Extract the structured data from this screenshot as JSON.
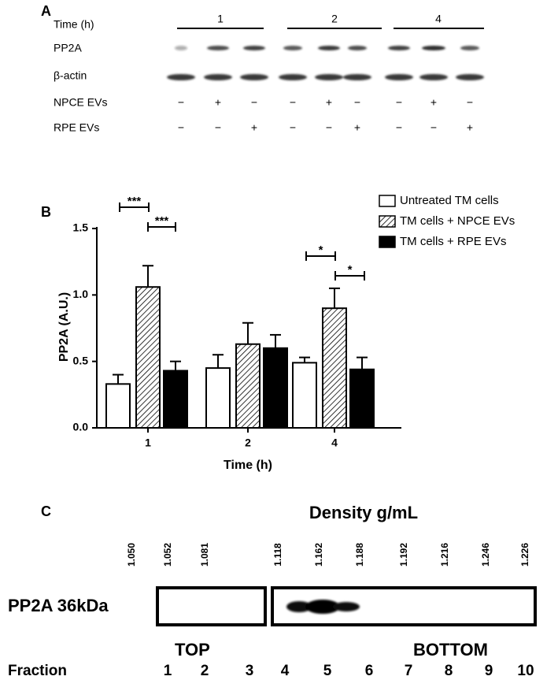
{
  "panel_a": {
    "label": "A",
    "time_label": "Time (h)",
    "times": [
      "1",
      "2",
      "4"
    ],
    "rows": [
      "PP2A",
      "β-actin",
      "NPCE EVs",
      "RPE EVs"
    ],
    "npce": [
      "−",
      "+",
      "−",
      "−",
      "+",
      "−",
      "−",
      "+",
      "−"
    ],
    "rpe": [
      "−",
      "−",
      "+",
      "−",
      "−",
      "+",
      "−",
      "−",
      "+"
    ]
  },
  "chart_data": {
    "type": "bar",
    "panel_label": "B",
    "y_label": "PP2A (A.U.)",
    "x_label": "Time (h)",
    "categories": [
      "1",
      "2",
      "4"
    ],
    "series": [
      {
        "name": "Untreated TM cells",
        "color": "#ffffff",
        "values": [
          0.33,
          0.45,
          0.49
        ],
        "errors": [
          0.07,
          0.1,
          0.04
        ]
      },
      {
        "name": "TM cells + NPCE EVs",
        "color": "#ffffff",
        "pattern": "hatch",
        "values": [
          1.06,
          0.63,
          0.9
        ],
        "errors": [
          0.16,
          0.16,
          0.15
        ]
      },
      {
        "name": "TM cells + RPE EVs",
        "color": "#000000",
        "values": [
          0.43,
          0.6,
          0.44
        ],
        "errors": [
          0.07,
          0.1,
          0.09
        ]
      }
    ],
    "ylim": [
      0,
      1.5
    ],
    "yticks": [
      {
        "value": 0,
        "label": "0.0"
      },
      0.5,
      {
        "value": 1,
        "label": "1.0"
      },
      1.5
    ],
    "legend": "upper right",
    "annotations": [
      "***",
      "***",
      "*",
      "*"
    ]
  },
  "panel_c": {
    "label": "C",
    "density_title": "Density g/mL",
    "densities": [
      "1.050",
      "1.052",
      "1.081",
      "1.118",
      "1.162",
      "1.188",
      "1.192",
      "1.216",
      "1.246",
      "1.226"
    ],
    "protein": "PP2A  36kDa",
    "top": "TOP",
    "bottom": "BOTTOM",
    "fraction_label": "Fraction",
    "fractions": [
      "1",
      "2",
      "3",
      "4",
      "5",
      "6",
      "7",
      "8",
      "9",
      "10"
    ]
  }
}
